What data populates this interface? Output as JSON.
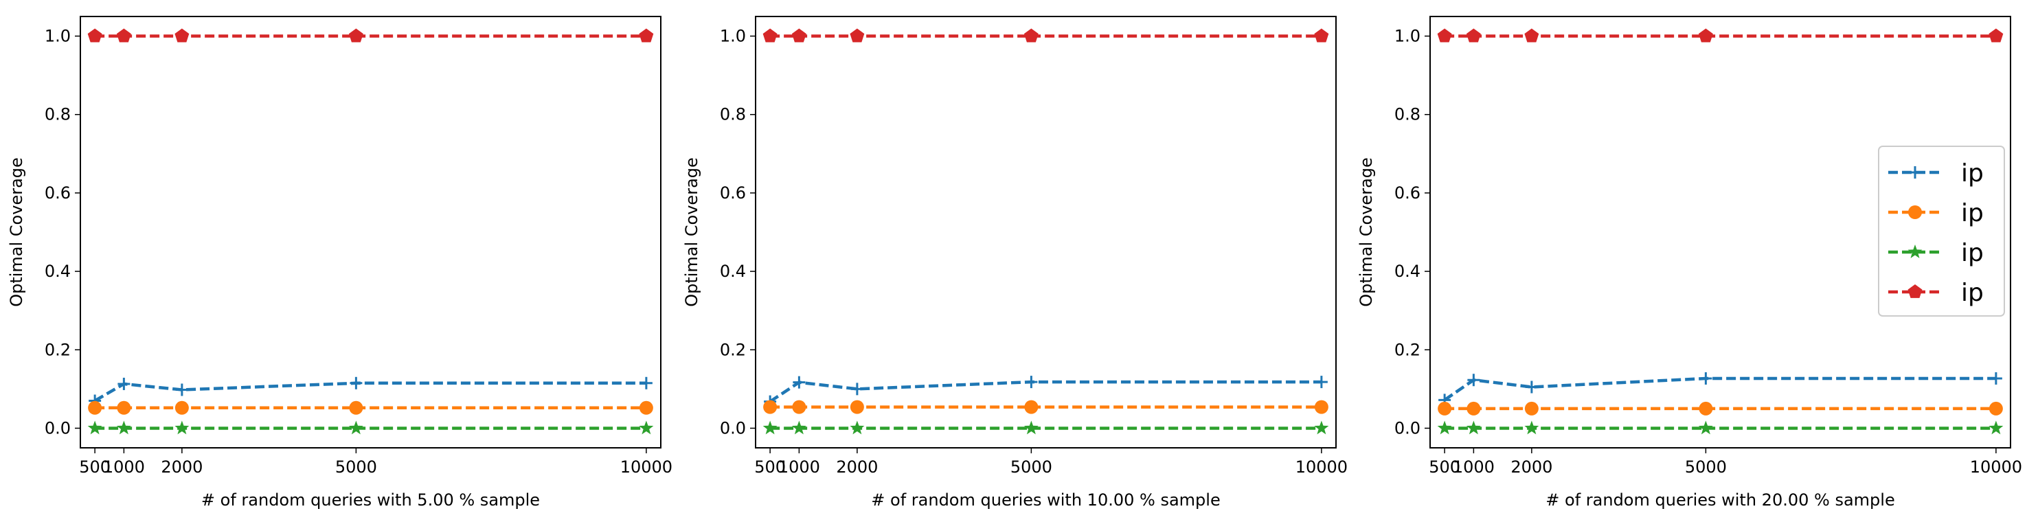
{
  "chart_data": [
    {
      "type": "line",
      "xlabel": "# of random queries with 5.00 % sample",
      "ylabel": "Optimal Coverage",
      "x": [
        500,
        1000,
        2000,
        5000,
        10000
      ],
      "xticks": [
        "500",
        "1000",
        "2000",
        "5000",
        "10000"
      ],
      "yticks": [
        "0.0",
        "0.2",
        "0.4",
        "0.6",
        "0.8",
        "1.0"
      ],
      "xlim": [
        250,
        10250
      ],
      "ylim": [
        -0.05,
        1.05
      ],
      "grid": false,
      "series": [
        {
          "values": [
            0.07,
            0.113,
            0.098,
            0.115,
            0.115
          ],
          "color": "#1f77b4",
          "marker": "plus-icon"
        },
        {
          "values": [
            0.052,
            0.052,
            0.052,
            0.052,
            0.052
          ],
          "color": "#ff7f0e",
          "marker": "circle-icon"
        },
        {
          "values": [
            0.0,
            0.0,
            0.0,
            0.0,
            0.0
          ],
          "color": "#2ca02c",
          "marker": "star-icon"
        },
        {
          "values": [
            1.0,
            1.0,
            1.0,
            1.0,
            1.0
          ],
          "color": "#d62728",
          "marker": "pentagon-icon"
        }
      ]
    },
    {
      "type": "line",
      "xlabel": "# of random queries with 10.00 % sample",
      "ylabel": "Optimal Coverage",
      "x": [
        500,
        1000,
        2000,
        5000,
        10000
      ],
      "xticks": [
        "500",
        "1000",
        "2000",
        "5000",
        "10000"
      ],
      "yticks": [
        "0.0",
        "0.2",
        "0.4",
        "0.6",
        "0.8",
        "1.0"
      ],
      "xlim": [
        250,
        10250
      ],
      "ylim": [
        -0.05,
        1.05
      ],
      "grid": false,
      "series": [
        {
          "values": [
            0.068,
            0.117,
            0.1,
            0.118,
            0.118
          ],
          "color": "#1f77b4",
          "marker": "plus-icon"
        },
        {
          "values": [
            0.054,
            0.054,
            0.054,
            0.054,
            0.054
          ],
          "color": "#ff7f0e",
          "marker": "circle-icon"
        },
        {
          "values": [
            0.0,
            0.0,
            0.0,
            0.0,
            0.0
          ],
          "color": "#2ca02c",
          "marker": "star-icon"
        },
        {
          "values": [
            1.0,
            1.0,
            1.0,
            1.0,
            1.0
          ],
          "color": "#d62728",
          "marker": "pentagon-icon"
        }
      ]
    },
    {
      "type": "line",
      "xlabel": "# of random queries with 20.00 % sample",
      "ylabel": "Optimal Coverage",
      "x": [
        500,
        1000,
        2000,
        5000,
        10000
      ],
      "xticks": [
        "500",
        "1000",
        "2000",
        "5000",
        "10000"
      ],
      "yticks": [
        "0.0",
        "0.2",
        "0.4",
        "0.6",
        "0.8",
        "1.0"
      ],
      "xlim": [
        250,
        10250
      ],
      "ylim": [
        -0.05,
        1.05
      ],
      "grid": false,
      "legend_position": "center-right",
      "legend": [
        "ip",
        "ip",
        "ip",
        "ip"
      ],
      "series": [
        {
          "values": [
            0.072,
            0.123,
            0.105,
            0.127,
            0.127
          ],
          "color": "#1f77b4",
          "marker": "plus-icon"
        },
        {
          "values": [
            0.05,
            0.05,
            0.05,
            0.05,
            0.05
          ],
          "color": "#ff7f0e",
          "marker": "circle-icon"
        },
        {
          "values": [
            0.0,
            0.0,
            0.0,
            0.0,
            0.0
          ],
          "color": "#2ca02c",
          "marker": "star-icon"
        },
        {
          "values": [
            1.0,
            1.0,
            1.0,
            1.0,
            1.0
          ],
          "color": "#d62728",
          "marker": "pentagon-icon"
        }
      ]
    }
  ]
}
